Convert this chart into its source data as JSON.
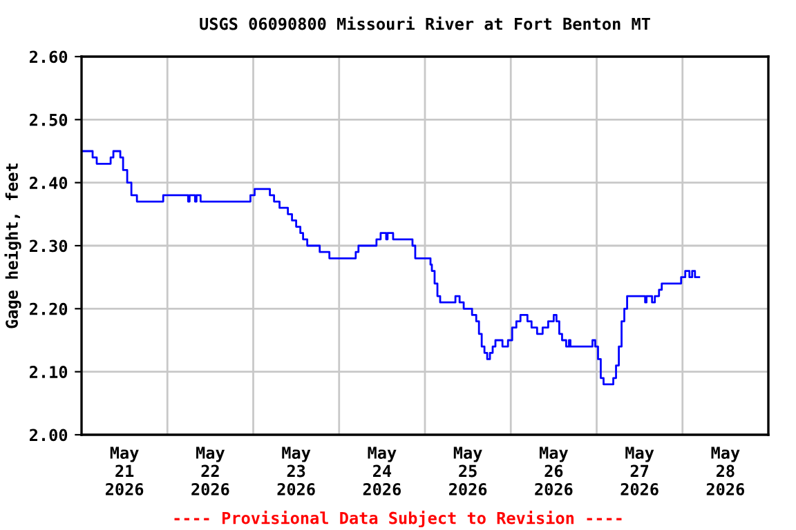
{
  "chart_data": {
    "type": "step",
    "title": "USGS 06090800 Missouri River at Fort Benton MT",
    "ylabel": "Gage height, feet",
    "annotations": [
      "---- Provisional Data Subject to Revision ----"
    ],
    "grid": true,
    "legend": false,
    "marker": "none",
    "line_style": "solid",
    "xlim": [
      "2026-05-21T00:00",
      "2026-05-29T00:00"
    ],
    "xticks": [
      {
        "value": "2026-05-21T00:00",
        "label": null
      },
      {
        "value": "2026-05-21T12:00",
        "label": "May\n21\n2026"
      },
      {
        "value": "2026-05-22T00:00",
        "label": null
      },
      {
        "value": "2026-05-22T12:00",
        "label": "May\n22\n2026"
      },
      {
        "value": "2026-05-23T00:00",
        "label": null
      },
      {
        "value": "2026-05-23T12:00",
        "label": "May\n23\n2026"
      },
      {
        "value": "2026-05-24T00:00",
        "label": null
      },
      {
        "value": "2026-05-24T12:00",
        "label": "May\n24\n2026"
      },
      {
        "value": "2026-05-25T00:00",
        "label": null
      },
      {
        "value": "2026-05-25T12:00",
        "label": "May\n25\n2026"
      },
      {
        "value": "2026-05-26T00:00",
        "label": null
      },
      {
        "value": "2026-05-26T12:00",
        "label": "May\n26\n2026"
      },
      {
        "value": "2026-05-27T00:00",
        "label": null
      },
      {
        "value": "2026-05-27T12:00",
        "label": "May\n27\n2026"
      },
      {
        "value": "2026-05-28T00:00",
        "label": null
      },
      {
        "value": "2026-05-28T12:00",
        "label": "May\n28\n2026"
      },
      {
        "value": "2026-05-29T00:00",
        "label": null
      }
    ],
    "ylim": [
      2.0,
      2.6
    ],
    "yticks": [
      {
        "value": 2.0,
        "label": "2.00"
      },
      {
        "value": 2.1,
        "label": "2.10"
      },
      {
        "value": 2.2,
        "label": "2.20"
      },
      {
        "value": 2.3,
        "label": "2.30"
      },
      {
        "value": 2.4,
        "label": "2.40"
      },
      {
        "value": 2.5,
        "label": "2.50"
      },
      {
        "value": 2.6,
        "label": "2.60"
      }
    ],
    "series": [
      {
        "color": "#0000ff",
        "x": [
          "2026-05-21T00:00",
          "2026-05-21T03:06",
          "2026-05-21T04:15",
          "2026-05-21T08:08",
          "2026-05-21T08:54",
          "2026-05-21T10:50",
          "2026-05-21T11:37",
          "2026-05-21T12:46",
          "2026-05-21T13:56",
          "2026-05-21T15:29",
          "2026-05-21T22:50",
          "2026-05-22T05:48",
          "2026-05-22T06:12",
          "2026-05-22T07:44",
          "2026-05-22T08:08",
          "2026-05-22T09:17",
          "2026-05-22T23:13",
          "2026-05-23T00:23",
          "2026-05-23T04:39",
          "2026-05-23T05:49",
          "2026-05-23T07:21",
          "2026-05-23T09:41",
          "2026-05-23T10:50",
          "2026-05-23T12:00",
          "2026-05-23T13:10",
          "2026-05-23T13:56",
          "2026-05-23T15:06",
          "2026-05-23T18:35",
          "2026-05-23T21:17",
          "2026-05-24T04:39",
          "2026-05-24T05:25",
          "2026-05-24T10:27",
          "2026-05-24T11:37",
          "2026-05-24T13:10",
          "2026-05-24T13:33",
          "2026-05-24T15:06",
          "2026-05-24T20:31",
          "2026-05-24T21:17",
          "2026-05-25T01:33",
          "2026-05-25T01:56",
          "2026-05-25T02:42",
          "2026-05-25T03:29",
          "2026-05-25T04:15",
          "2026-05-25T08:31",
          "2026-05-25T09:41",
          "2026-05-25T10:50",
          "2026-05-25T13:10",
          "2026-05-25T14:20",
          "2026-05-25T15:06",
          "2026-05-25T15:52",
          "2026-05-25T16:38",
          "2026-05-25T17:24",
          "2026-05-25T18:10",
          "2026-05-25T18:56",
          "2026-05-25T19:42",
          "2026-05-25T21:40",
          "2026-05-25T23:13",
          "2026-05-26T00:23",
          "2026-05-26T01:33",
          "2026-05-26T02:42",
          "2026-05-26T04:39",
          "2026-05-26T05:48",
          "2026-05-26T07:21",
          "2026-05-26T08:54",
          "2026-05-26T10:27",
          "2026-05-26T12:00",
          "2026-05-26T12:46",
          "2026-05-26T13:33",
          "2026-05-26T14:20",
          "2026-05-26T15:29",
          "2026-05-26T16:16",
          "2026-05-26T16:40",
          "2026-05-26T22:50",
          "2026-05-26T23:36",
          "2026-05-27T00:23",
          "2026-05-27T01:09",
          "2026-05-27T01:56",
          "2026-05-27T04:39",
          "2026-05-27T05:25",
          "2026-05-27T06:12",
          "2026-05-27T06:58",
          "2026-05-27T07:44",
          "2026-05-27T08:31",
          "2026-05-27T13:33",
          "2026-05-27T13:56",
          "2026-05-27T15:29",
          "2026-05-27T16:16",
          "2026-05-27T17:26",
          "2026-05-27T18:12",
          "2026-05-27T23:37",
          "2026-05-28T00:46",
          "2026-05-28T01:56",
          "2026-05-28T02:42",
          "2026-05-28T03:29",
          "2026-05-28T04:39"
        ],
        "values": [
          2.45,
          2.44,
          2.43,
          2.44,
          2.45,
          2.44,
          2.42,
          2.4,
          2.38,
          2.37,
          2.38,
          2.37,
          2.38,
          2.37,
          2.38,
          2.37,
          2.38,
          2.39,
          2.38,
          2.37,
          2.36,
          2.35,
          2.34,
          2.33,
          2.32,
          2.31,
          2.3,
          2.29,
          2.28,
          2.29,
          2.3,
          2.31,
          2.32,
          2.31,
          2.32,
          2.31,
          2.3,
          2.28,
          2.27,
          2.26,
          2.24,
          2.22,
          2.21,
          2.22,
          2.21,
          2.2,
          2.19,
          2.18,
          2.16,
          2.14,
          2.13,
          2.12,
          2.13,
          2.14,
          2.15,
          2.14,
          2.15,
          2.17,
          2.18,
          2.19,
          2.18,
          2.17,
          2.16,
          2.17,
          2.18,
          2.19,
          2.18,
          2.16,
          2.15,
          2.14,
          2.15,
          2.14,
          2.15,
          2.14,
          2.12,
          2.09,
          2.08,
          2.09,
          2.11,
          2.14,
          2.18,
          2.2,
          2.22,
          2.21,
          2.22,
          2.21,
          2.22,
          2.23,
          2.24,
          2.25,
          2.26,
          2.25,
          2.26,
          2.25,
          2.25
        ]
      }
    ]
  }
}
